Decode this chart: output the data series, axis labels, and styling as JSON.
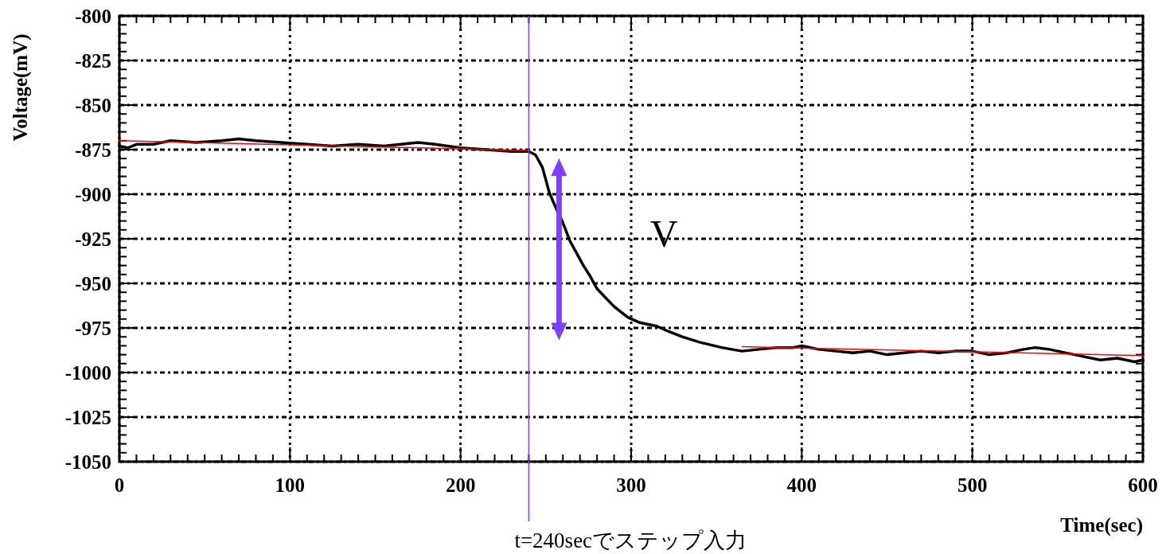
{
  "chart_data": {
    "type": "line",
    "xlabel": "Time(sec)",
    "ylabel": "Voltage(mV)",
    "xlim": [
      0,
      600
    ],
    "xticks": [
      0,
      100,
      200,
      300,
      400,
      500,
      600
    ],
    "ylim": [
      -1050,
      -800
    ],
    "yticks": [
      -1050,
      -1025,
      -1000,
      -975,
      -950,
      -925,
      -900,
      -875,
      -850,
      -825,
      -800
    ],
    "grid": true,
    "series": [
      {
        "color": "#000000",
        "x": [
          0,
          5,
          10,
          20,
          30,
          45,
          60,
          70,
          80,
          95,
          110,
          125,
          140,
          155,
          165,
          175,
          185,
          200,
          215,
          230,
          240,
          244,
          248,
          252,
          256,
          260,
          264,
          268,
          272,
          276,
          280,
          285,
          290,
          298,
          305,
          315,
          322,
          330,
          340,
          353,
          365,
          375,
          385,
          395,
          400,
          410,
          420,
          430,
          440,
          450,
          460,
          470,
          480,
          490,
          500,
          510,
          520,
          530,
          537,
          545,
          555,
          565,
          575,
          585,
          595,
          600
        ],
        "values": [
          -873,
          -874,
          -872,
          -872,
          -870,
          -871,
          -870,
          -869,
          -870,
          -871,
          -872,
          -873,
          -872,
          -873,
          -872,
          -871,
          -872,
          -874,
          -875,
          -876,
          -876,
          -878,
          -885,
          -899,
          -908,
          -916,
          -926,
          -933,
          -940,
          -946,
          -953,
          -958,
          -963,
          -969,
          -972,
          -974,
          -977,
          -980,
          -983,
          -986,
          -988,
          -987,
          -986,
          -986,
          -985,
          -987,
          -988,
          -989,
          -988,
          -990,
          -989,
          -988,
          -989,
          -988,
          -988,
          -990,
          -989,
          -987,
          -986,
          -987,
          -989,
          -991,
          -993,
          -992,
          -994,
          -993
        ]
      },
      {
        "color": "#ff0000",
        "x": [
          0,
          240
        ],
        "values": [
          -870,
          -875.5
        ]
      },
      {
        "color": "#ff0000",
        "x": [
          365,
          600
        ],
        "values": [
          -985.5,
          -990.5
        ]
      }
    ],
    "ref_lines": [
      {
        "axis": "x",
        "value": 240,
        "label": "t=240secでステップ入力",
        "color": "#7f3fff"
      }
    ],
    "annotations": [
      "V"
    ]
  }
}
